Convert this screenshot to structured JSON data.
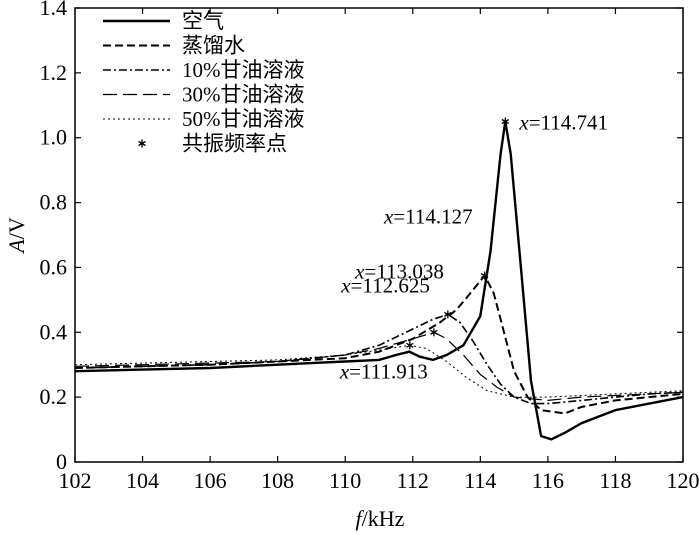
{
  "chart_data": {
    "type": "line",
    "xlabel": {
      "var": "f",
      "unit": "/kHz"
    },
    "ylabel": {
      "var": "A",
      "unit": "/V"
    },
    "xlim": [
      102,
      120
    ],
    "ylim": [
      0,
      1.4
    ],
    "x_ticks": [
      "102",
      "104",
      "106",
      "108",
      "110",
      "112",
      "114",
      "116",
      "118",
      "120"
    ],
    "y_ticks": [
      "0",
      "0.2",
      "0.4",
      "0.6",
      "0.8",
      "1.0",
      "1.2",
      "1.4"
    ],
    "grid": false,
    "legend_position": "top-left",
    "series": [
      {
        "name": "空气",
        "style": "solid",
        "points": [
          [
            102,
            0.28
          ],
          [
            104,
            0.285
          ],
          [
            106,
            0.29
          ],
          [
            108,
            0.3
          ],
          [
            109,
            0.305
          ],
          [
            110,
            0.31
          ],
          [
            111,
            0.315
          ],
          [
            111.5,
            0.33
          ],
          [
            111.9,
            0.34
          ],
          [
            112.2,
            0.325
          ],
          [
            112.6,
            0.315
          ],
          [
            113,
            0.33
          ],
          [
            113.5,
            0.36
          ],
          [
            114,
            0.45
          ],
          [
            114.3,
            0.65
          ],
          [
            114.6,
            0.95
          ],
          [
            114.74,
            1.05
          ],
          [
            114.9,
            0.95
          ],
          [
            115.2,
            0.6
          ],
          [
            115.5,
            0.25
          ],
          [
            115.8,
            0.08
          ],
          [
            116.1,
            0.07
          ],
          [
            116.5,
            0.09
          ],
          [
            117,
            0.12
          ],
          [
            118,
            0.16
          ],
          [
            119,
            0.18
          ],
          [
            120,
            0.2
          ]
        ]
      },
      {
        "name": "蒸馏水",
        "style": "dashed",
        "points": [
          [
            102,
            0.29
          ],
          [
            104,
            0.295
          ],
          [
            106,
            0.3
          ],
          [
            108,
            0.31
          ],
          [
            110,
            0.32
          ],
          [
            111,
            0.34
          ],
          [
            112,
            0.38
          ],
          [
            112.8,
            0.43
          ],
          [
            113.3,
            0.47
          ],
          [
            113.7,
            0.52
          ],
          [
            114.13,
            0.575
          ],
          [
            114.4,
            0.52
          ],
          [
            114.7,
            0.4
          ],
          [
            115,
            0.28
          ],
          [
            115.4,
            0.2
          ],
          [
            115.8,
            0.16
          ],
          [
            116.5,
            0.15
          ],
          [
            117,
            0.17
          ],
          [
            118,
            0.19
          ],
          [
            119,
            0.2
          ],
          [
            120,
            0.21
          ]
        ]
      },
      {
        "name": "10%甘油溶液",
        "style": "dashdot",
        "points": [
          [
            102,
            0.29
          ],
          [
            104,
            0.295
          ],
          [
            106,
            0.3
          ],
          [
            108,
            0.31
          ],
          [
            110,
            0.33
          ],
          [
            111,
            0.36
          ],
          [
            112,
            0.41
          ],
          [
            112.6,
            0.44
          ],
          [
            113.04,
            0.455
          ],
          [
            113.4,
            0.43
          ],
          [
            113.8,
            0.37
          ],
          [
            114.2,
            0.3
          ],
          [
            114.6,
            0.24
          ],
          [
            115,
            0.2
          ],
          [
            115.5,
            0.18
          ],
          [
            116,
            0.18
          ],
          [
            117,
            0.19
          ],
          [
            118,
            0.2
          ],
          [
            119,
            0.21
          ],
          [
            120,
            0.215
          ]
        ]
      },
      {
        "name": "30%甘油溶液",
        "style": "longdash",
        "points": [
          [
            102,
            0.295
          ],
          [
            104,
            0.3
          ],
          [
            106,
            0.305
          ],
          [
            108,
            0.31
          ],
          [
            110,
            0.33
          ],
          [
            111,
            0.35
          ],
          [
            112,
            0.38
          ],
          [
            112.63,
            0.4
          ],
          [
            113,
            0.38
          ],
          [
            113.5,
            0.33
          ],
          [
            114,
            0.27
          ],
          [
            114.5,
            0.23
          ],
          [
            115,
            0.2
          ],
          [
            116,
            0.19
          ],
          [
            117,
            0.2
          ],
          [
            118,
            0.205
          ],
          [
            119,
            0.21
          ],
          [
            120,
            0.215
          ]
        ]
      },
      {
        "name": "50%甘油溶液",
        "style": "dotted",
        "points": [
          [
            102,
            0.3
          ],
          [
            104,
            0.305
          ],
          [
            106,
            0.31
          ],
          [
            108,
            0.315
          ],
          [
            110,
            0.33
          ],
          [
            111,
            0.345
          ],
          [
            111.91,
            0.36
          ],
          [
            112.4,
            0.35
          ],
          [
            113,
            0.31
          ],
          [
            113.6,
            0.26
          ],
          [
            114.2,
            0.22
          ],
          [
            115,
            0.2
          ],
          [
            116,
            0.2
          ],
          [
            117,
            0.205
          ],
          [
            118,
            0.21
          ],
          [
            119,
            0.215
          ],
          [
            120,
            0.22
          ]
        ]
      }
    ],
    "resonance_series_name": "共振频率点",
    "resonance_points": [
      {
        "x": 114.741,
        "y": 1.05,
        "label_var": "x",
        "label_value": "=114.741"
      },
      {
        "x": 114.127,
        "y": 0.575,
        "label_var": "x",
        "label_value": "=114.127"
      },
      {
        "x": 113.038,
        "y": 0.455,
        "label_var": "x",
        "label_value": "=113.038"
      },
      {
        "x": 112.625,
        "y": 0.4,
        "label_var": "x",
        "label_value": "=112.625"
      },
      {
        "x": 111.913,
        "y": 0.36,
        "label_var": "x",
        "label_value": "=111.913"
      }
    ]
  }
}
